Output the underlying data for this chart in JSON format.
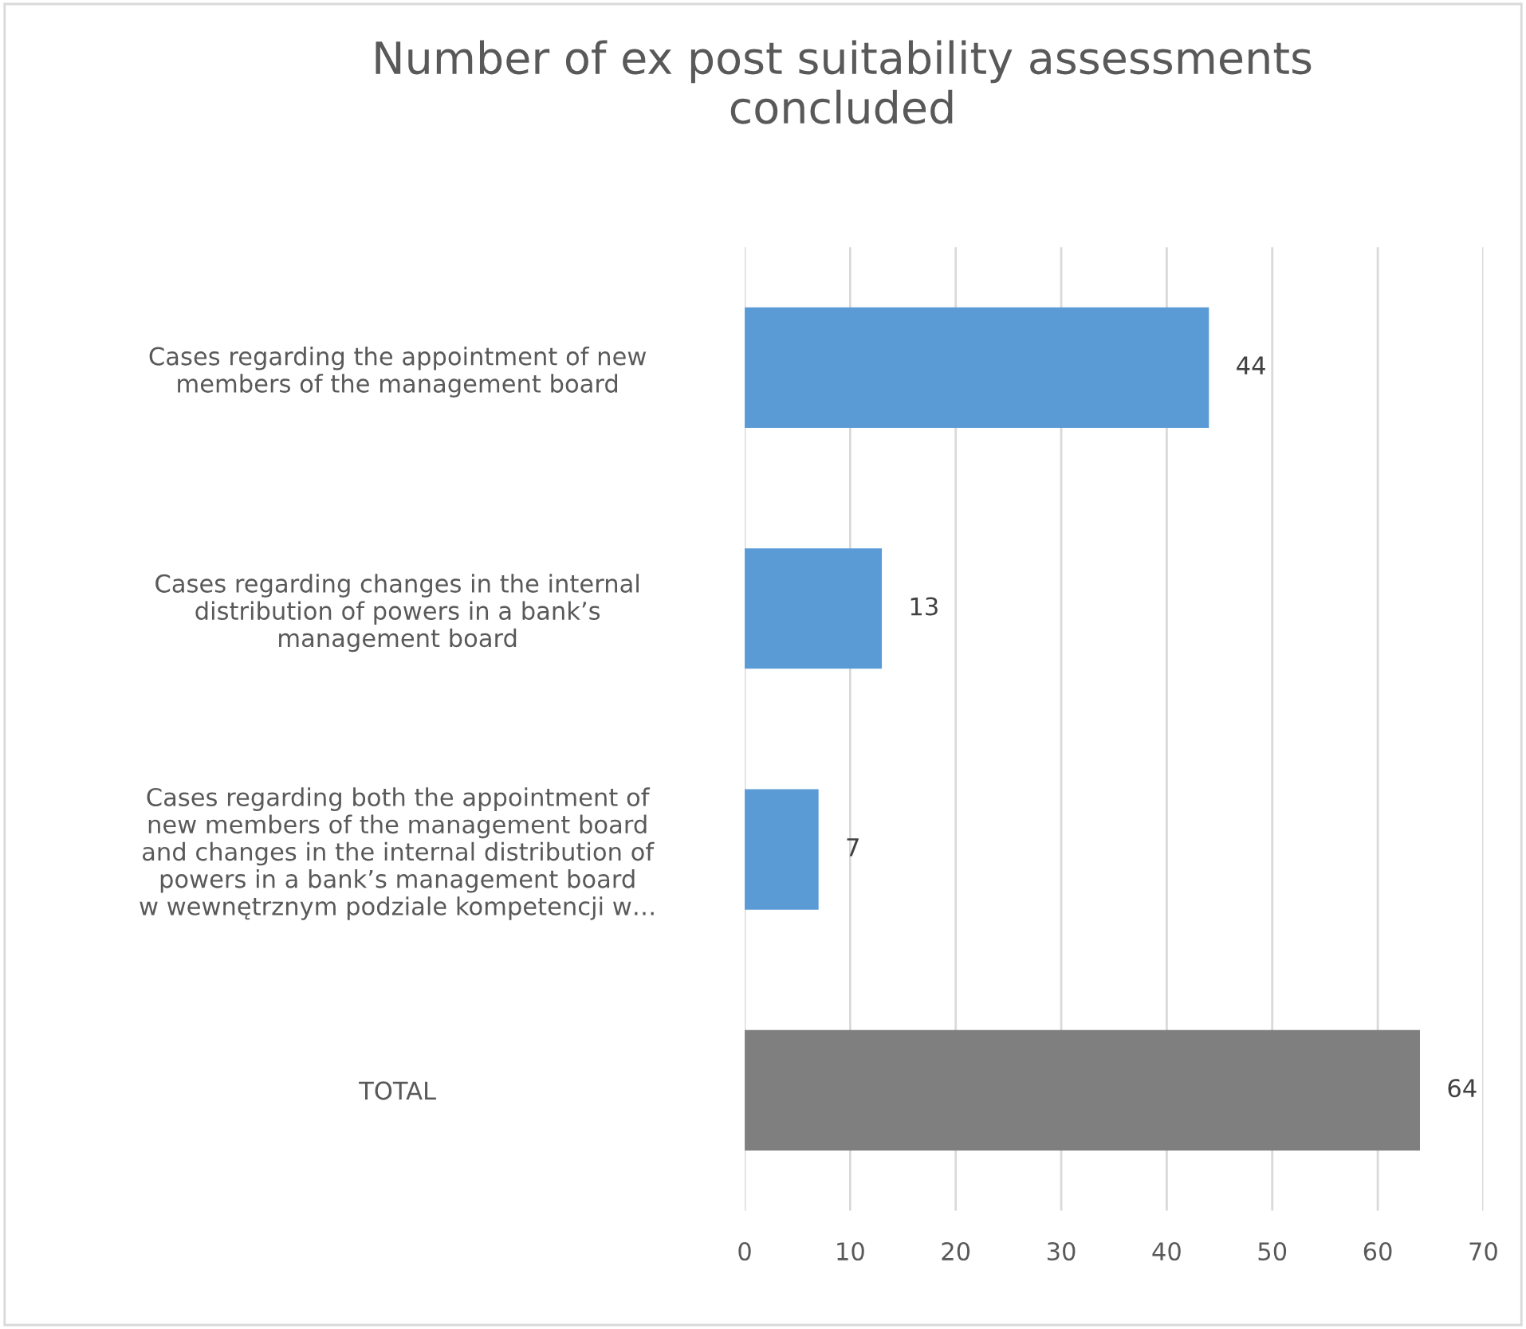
{
  "chart_data": {
    "type": "bar",
    "orientation": "horizontal",
    "title": "Number of ex post suitability assessments\nconcluded",
    "categories": [
      "Cases regarding the appointment of new\nmembers of the management board",
      "Cases regarding changes in the internal\ndistribution of powers in a bank’s\nmanagement board",
      "Cases regarding both the appointment of\nnew members of the management board\nand changes in the internal distribution of\npowers in a bank’s management board\nw wewnętrznym podziale kompetencji w…",
      "TOTAL"
    ],
    "values": [
      44,
      13,
      7,
      64
    ],
    "colors": [
      "#5b9bd5",
      "#5b9bd5",
      "#5b9bd5",
      "#7f7f7f"
    ],
    "xlim": [
      0,
      70
    ],
    "xticks": [
      0,
      10,
      20,
      30,
      40,
      50,
      60,
      70
    ],
    "grid": "x",
    "data_labels": true,
    "legend": false
  }
}
